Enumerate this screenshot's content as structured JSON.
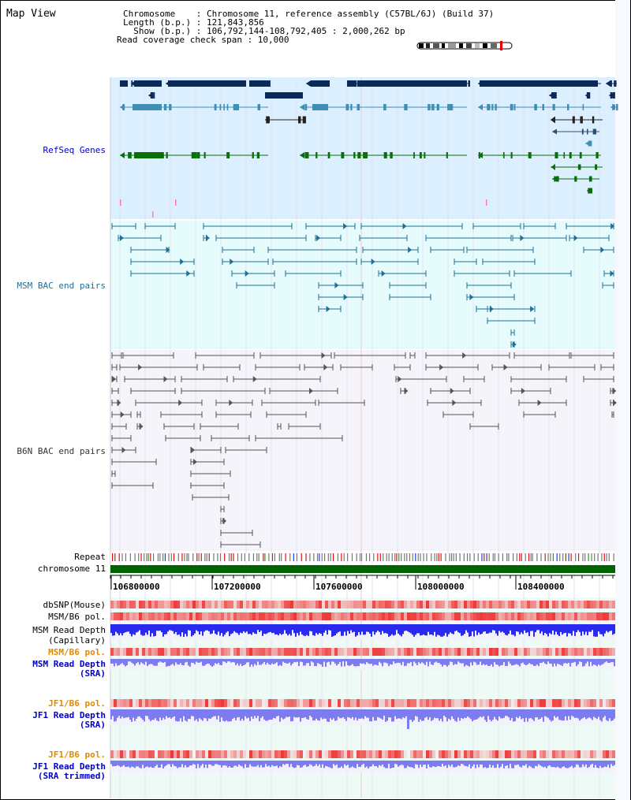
{
  "header": {
    "view_title": "Map View",
    "lines": [
      "Chromosome    : Chromosome 11, reference assembly (C57BL/6J) (Build 37)",
      "Length (b.p.) : 121,843,856",
      "  Show (b.p.) : 106,792,144-108,792,405 : 2,000,262 bp",
      "Read coverage check span : 10,000"
    ]
  },
  "tracks": {
    "refseq": "RefSeq Genes",
    "msm_bac": "MSM BAC end pairs",
    "b6n_bac": "B6N BAC end pairs",
    "repeat": "Repeat",
    "chromosome": "chromosome 11",
    "dbsnp": "dbSNP(Mouse)",
    "msm_b6_pol_1": "MSM/B6 pol.",
    "msm_depth_cap_1": "MSM Read Depth",
    "msm_depth_cap_2": "(Capillary)",
    "msm_b6_pol_2": "MSM/B6 pol.",
    "msm_depth_sra_1": "MSM Read Depth",
    "msm_depth_sra_2": "(SRA)",
    "jf1_b6_pol_1": "JF1/B6 pol.",
    "jf1_depth_sra_1": "JF1 Read Depth",
    "jf1_depth_sra_2": "(SRA)",
    "jf1_b6_pol_2": "JF1/B6 pol.",
    "jf1_depth_trim_1": "JF1 Read Depth",
    "jf1_depth_trim_2": "(SRA trimmed)"
  },
  "axis": {
    "ticks": [
      "106800000",
      "107200000",
      "107600000",
      "108000000",
      "108400000"
    ]
  },
  "colors": {
    "refseq_bg": "#dcefff",
    "refseq_dark": "#0a2a5a",
    "refseq_mid": "#3f8fb5",
    "refseq_green": "#0b6e0b",
    "msm_bg": "#e6fbfb",
    "msm_line": "#1f6f95",
    "b6n_bg": "#f4f4fa",
    "b6n_line": "#555555",
    "chromosome_bar": "#006400",
    "depth_blue": "#2a2aee",
    "depth_light": "#7c7cf0",
    "pol_red": "#e83030"
  }
}
